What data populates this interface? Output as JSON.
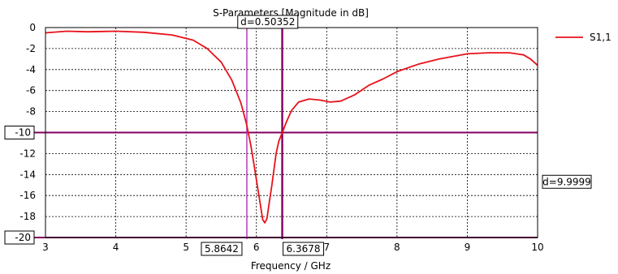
{
  "chart_data": {
    "type": "line",
    "title": "S-Parameters [Magnitude in dB]",
    "xlabel": "Frequency / GHz",
    "ylabel": "",
    "xlim": [
      3,
      10
    ],
    "ylim": [
      -20,
      0
    ],
    "x_ticks": [
      "3",
      "4",
      "5",
      "6",
      "7",
      "8",
      "9",
      "10"
    ],
    "y_ticks": [
      "0",
      "-2",
      "-4",
      "-6",
      "-8",
      "-10",
      "-12",
      "-14",
      "-16",
      "-18",
      "-20"
    ],
    "grid": true,
    "legend_position": "top-right",
    "series": [
      {
        "name": "S1,1",
        "color": "#e8111a",
        "x": [
          3.0,
          3.3,
          3.6,
          4.0,
          4.4,
          4.8,
          5.1,
          5.3,
          5.5,
          5.65,
          5.78,
          5.86,
          5.92,
          5.97,
          6.02,
          6.06,
          6.09,
          6.12,
          6.15,
          6.18,
          6.22,
          6.28,
          6.32,
          6.37,
          6.42,
          6.5,
          6.6,
          6.75,
          6.9,
          7.05,
          7.2,
          7.4,
          7.6,
          7.8,
          8.0,
          8.3,
          8.6,
          9.0,
          9.3,
          9.6,
          9.8,
          9.9,
          10.0
        ],
        "y": [
          -0.5,
          -0.35,
          -0.4,
          -0.35,
          -0.45,
          -0.7,
          -1.2,
          -2.0,
          -3.3,
          -5.0,
          -7.2,
          -9.2,
          -11.2,
          -13.2,
          -15.3,
          -17.0,
          -18.3,
          -18.6,
          -18.2,
          -16.8,
          -15.0,
          -12.0,
          -10.8,
          -10.0,
          -9.1,
          -7.9,
          -7.1,
          -6.8,
          -6.9,
          -7.1,
          -7.0,
          -6.4,
          -5.5,
          -4.9,
          -4.2,
          -3.5,
          -3.0,
          -2.5,
          -2.4,
          -2.4,
          -2.6,
          -3.0,
          -3.6
        ]
      }
    ],
    "markers": {
      "vertical": [
        {
          "value": 5.8642,
          "label": "5.8642",
          "color": "#b030b0"
        },
        {
          "value": 6.3678,
          "label": "6.3678",
          "color": "#800060"
        }
      ],
      "horizontal": [
        {
          "value": -10,
          "label": "-10",
          "color": "#800060"
        },
        {
          "value": -20,
          "label": "-20",
          "color": "#800060"
        }
      ],
      "x_delta_label": "d=0.50352",
      "y_delta_label": "d=9.9999"
    },
    "colors": {
      "grid": "#000000",
      "axis": "#000000",
      "box_border": "#000000",
      "background": "#ffffff"
    }
  }
}
